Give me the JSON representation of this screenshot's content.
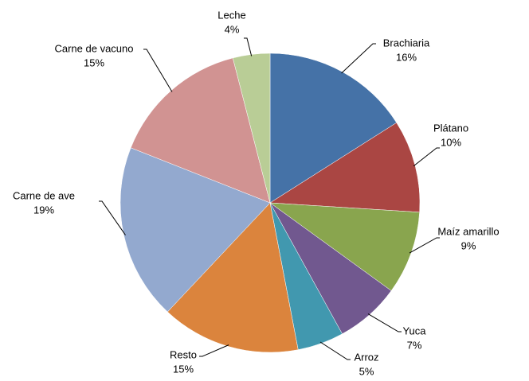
{
  "chart_data": {
    "type": "pie",
    "categories": [
      "Brachiaria",
      "Plátano",
      "Maíz amarillo",
      "Yuca",
      "Arroz",
      "Resto",
      "Carne de ave",
      "Carne de vacuno",
      "Leche"
    ],
    "values": [
      16,
      10,
      9,
      7,
      5,
      15,
      19,
      15,
      4
    ],
    "value_labels": [
      "16%",
      "10%",
      "9%",
      "7%",
      "5%",
      "15%",
      "19%",
      "15%",
      "4%"
    ],
    "colors": [
      "#4572a7",
      "#aa4643",
      "#89a54e",
      "#71588f",
      "#4198af",
      "#db843d",
      "#93a9cf",
      "#d19392",
      "#b9cd96"
    ]
  }
}
